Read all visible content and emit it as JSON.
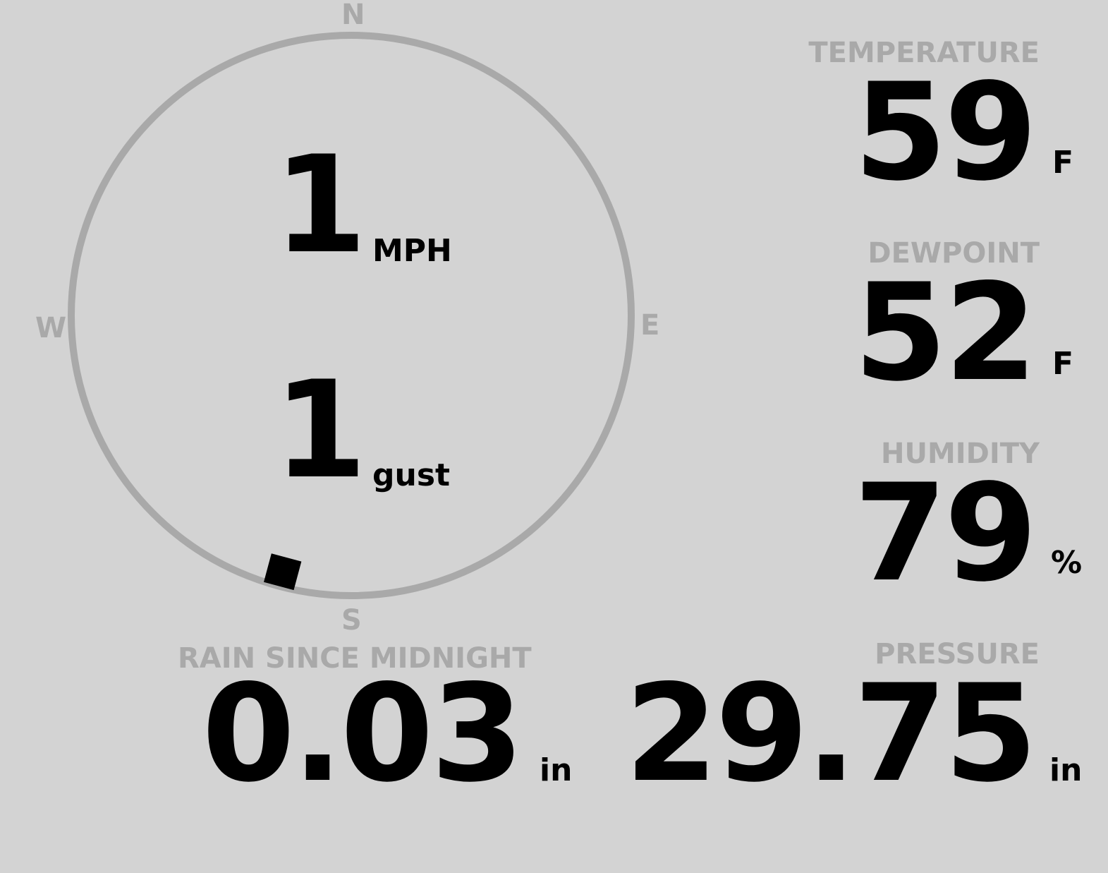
{
  "compass": {
    "cardinals": {
      "n": "N",
      "e": "E",
      "s": "S",
      "w": "W"
    },
    "wind_direction_deg": 195,
    "wind_speed": "1",
    "wind_speed_unit": "MPH",
    "gust": "1",
    "gust_unit": "gust"
  },
  "temperature": {
    "label": "TEMPERATURE",
    "value": "59",
    "unit": "F"
  },
  "dewpoint": {
    "label": "DEWPOINT",
    "value": "52",
    "unit": "F"
  },
  "humidity": {
    "label": "HUMIDITY",
    "value": "79",
    "unit": "%"
  },
  "pressure": {
    "label": "PRESSURE",
    "value": "29.75",
    "unit": "in"
  },
  "rain": {
    "label": "RAIN SINCE MIDNIGHT",
    "value": "0.03",
    "unit": "in"
  },
  "colors": {
    "background": "#d3d3d3",
    "muted": "#a9a9a9",
    "text": "#000000"
  }
}
